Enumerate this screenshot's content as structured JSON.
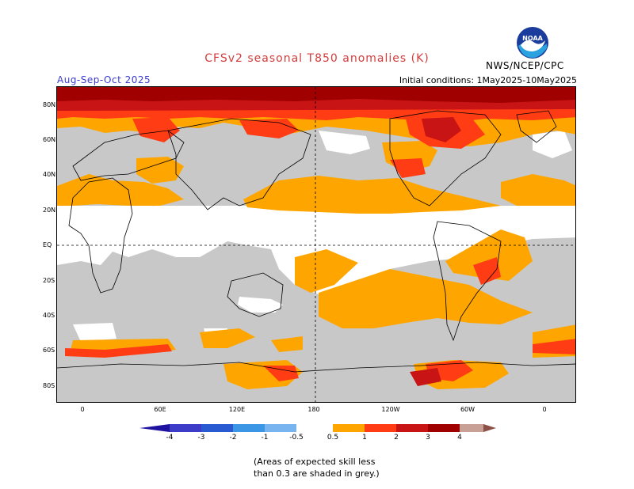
{
  "header": {
    "title": "CFSv2 seasonal T850 anomalies (K)",
    "season": "Aug-Sep-Oct 2025",
    "initial_conditions": "Initial conditions: 1May2025-10May2025",
    "agency": "NWS/NCEP/CPC",
    "logo_text": "NOAA"
  },
  "axes": {
    "lat_labels": [
      "80N",
      "60N",
      "40N",
      "20N",
      "EQ",
      "20S",
      "40S",
      "60S",
      "80S"
    ],
    "lon_labels": [
      "0",
      "60E",
      "120E",
      "180",
      "120W",
      "60W",
      "0"
    ]
  },
  "legend": {
    "ticks": [
      "-4",
      "-3",
      "-2",
      "-1",
      "-0.5",
      "0.5",
      "1",
      "2",
      "3",
      "4"
    ],
    "colors": {
      "lt_-4": "#1e12a0",
      "-4_-3": "#3c3cc8",
      "-3_-2": "#2a5ad2",
      "-2_-1": "#3c96e6",
      "-1_-0.5": "#78b4f0",
      "-0.5_0.5": "#ffffff",
      "0.5_1": "#ffa500",
      "1_2": "#ff3c14",
      "2_3": "#c81414",
      "3_4": "#a00000",
      "4_5": "#c8a096",
      "gt_5": "#8c5046",
      "low_skill": "#c8c8c8"
    }
  },
  "note": {
    "line1": "(Areas of expected skill less",
    "line2": "than 0.3 are shaded in grey.)"
  }
}
